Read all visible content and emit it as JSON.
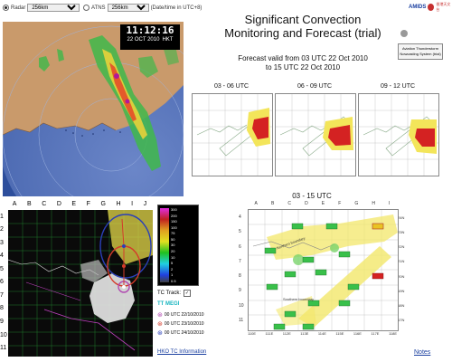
{
  "header": {
    "radar_label": "Radar",
    "radar_value": "256km",
    "atns_label": "ATNS",
    "atns_value": "256km",
    "time_note": "(Date/time in UTC+8)",
    "org_names": [
      "AMIDS",
      "香港天文台"
    ]
  },
  "radar": {
    "clock_time": "11:12:16",
    "clock_date": "22 OCT 2010",
    "clock_zone": "HKT"
  },
  "main": {
    "title_line1": "Significant Convection",
    "title_line2": "Monitoring and Forecast (trial)",
    "button_label": "Aviation Thunderstorm Nowcasting System (trial)",
    "valid_line1": "Forecast valid from 03 UTC 22 Oct 2010",
    "valid_line2": "to 15 UTC 22 Oct 2010"
  },
  "forecast_panels": [
    {
      "label": "03 - 06 UTC"
    },
    {
      "label": "06 - 09 UTC"
    },
    {
      "label": "09 - 12 UTC"
    }
  ],
  "big_forecast": {
    "label": "03 - 15 UTC",
    "col_letters": [
      "A",
      "B",
      "C",
      "D",
      "E",
      "F",
      "G",
      "H",
      "I"
    ],
    "row_numbers": [
      "4",
      "5",
      "6",
      "7",
      "8",
      "9",
      "10",
      "11"
    ],
    "lat_labels": [
      "24N",
      "23N",
      "22N",
      "21N",
      "20N",
      "19N",
      "18N",
      "17N"
    ],
    "lon_labels": [
      "110E",
      "111E",
      "112E",
      "113E",
      "114E",
      "115E",
      "116E",
      "117E",
      "118E"
    ],
    "annotations": [
      "Northern boundary",
      "Southern boundary"
    ]
  },
  "tc_map": {
    "col_letters": [
      "A",
      "B",
      "C",
      "D",
      "E",
      "F",
      "G",
      "H",
      "I",
      "J"
    ],
    "row_numbers": [
      "1",
      "2",
      "3",
      "4",
      "5",
      "6",
      "7",
      "8",
      "9",
      "10",
      "11"
    ],
    "scale_values": [
      "300",
      "200",
      "150",
      "100",
      "75",
      "50",
      "30",
      "20",
      "10",
      "5",
      "2",
      "1",
      "0.5"
    ],
    "tc_track_label": "TC Track:",
    "tc_name": "TT MEGI",
    "tc_times": [
      "00 UTC 22/10/2010",
      "00 UTC 23/10/2010",
      "00 UTC 24/10/2010"
    ],
    "tc_link": "HKO TC Information",
    "colors": {
      "ring1": "#d43a2a",
      "ring2": "#e2c21a",
      "ring3": "#2a3fb8"
    }
  },
  "footer": {
    "notes_link": "Notes"
  }
}
